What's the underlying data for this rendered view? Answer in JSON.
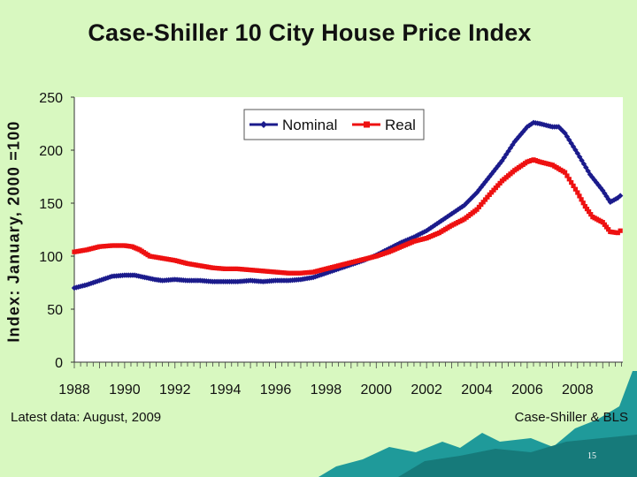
{
  "slide": {
    "title": "Case-Shiller 10 City House Price Index",
    "y_axis_title": "Index: January, 2000 =100",
    "footnote_left": "Latest data: August, 2009",
    "footnote_right": "Case-Shiller & BLS",
    "page_number": "15"
  },
  "colors": {
    "background": "#d8f8c0",
    "plot_area": "#ffffff",
    "nominal": "#1b1b8c",
    "real": "#ee1111",
    "decor": "#1f9a9a"
  },
  "chart_data": {
    "type": "line",
    "title": "Case-Shiller 10 City House Price Index",
    "xlabel": "",
    "ylabel": "Index: January, 2000 =100",
    "xlim": [
      1988,
      2009.8
    ],
    "ylim": [
      0,
      250
    ],
    "y_ticks": [
      0,
      50,
      100,
      150,
      200,
      250
    ],
    "x_ticks": [
      1988,
      1990,
      1992,
      1994,
      1996,
      1998,
      2000,
      2002,
      2004,
      2006,
      2008
    ],
    "x_tick_labels": [
      "1988",
      "1990",
      "1992",
      "1994",
      "1996",
      "1998",
      "2000",
      "2002",
      "2004",
      "2006",
      "2008"
    ],
    "grid": false,
    "legend": {
      "position": "top-right",
      "entries": [
        "Nominal",
        "Real"
      ]
    },
    "series": [
      {
        "name": "Nominal",
        "marker": "diamond",
        "points": [
          [
            1988.0,
            70
          ],
          [
            1988.5,
            73
          ],
          [
            1989.0,
            77
          ],
          [
            1989.5,
            81
          ],
          [
            1990.0,
            82
          ],
          [
            1990.4,
            82
          ],
          [
            1990.8,
            80
          ],
          [
            1991.2,
            78
          ],
          [
            1991.5,
            77
          ],
          [
            1992.0,
            78
          ],
          [
            1992.5,
            77
          ],
          [
            1993.0,
            77
          ],
          [
            1993.5,
            76
          ],
          [
            1994.0,
            76
          ],
          [
            1994.5,
            76
          ],
          [
            1995.0,
            77
          ],
          [
            1995.5,
            76
          ],
          [
            1996.0,
            77
          ],
          [
            1996.5,
            77
          ],
          [
            1997.0,
            78
          ],
          [
            1997.5,
            80
          ],
          [
            1998.0,
            84
          ],
          [
            1998.5,
            88
          ],
          [
            1999.0,
            92
          ],
          [
            1999.5,
            96
          ],
          [
            2000.0,
            101
          ],
          [
            2000.5,
            107
          ],
          [
            2001.0,
            113
          ],
          [
            2001.5,
            118
          ],
          [
            2002.0,
            124
          ],
          [
            2002.5,
            132
          ],
          [
            2003.0,
            140
          ],
          [
            2003.5,
            148
          ],
          [
            2004.0,
            160
          ],
          [
            2004.5,
            175
          ],
          [
            2005.0,
            190
          ],
          [
            2005.5,
            208
          ],
          [
            2006.0,
            222
          ],
          [
            2006.25,
            226
          ],
          [
            2006.5,
            225
          ],
          [
            2007.0,
            222
          ],
          [
            2007.25,
            222
          ],
          [
            2007.5,
            216
          ],
          [
            2008.0,
            197
          ],
          [
            2008.5,
            177
          ],
          [
            2009.0,
            162
          ],
          [
            2009.3,
            151
          ],
          [
            2009.6,
            155
          ],
          [
            2009.7,
            157
          ]
        ]
      },
      {
        "name": "Real",
        "marker": "square",
        "points": [
          [
            1988.0,
            104
          ],
          [
            1988.5,
            106
          ],
          [
            1989.0,
            109
          ],
          [
            1989.5,
            110
          ],
          [
            1990.0,
            110
          ],
          [
            1990.3,
            109
          ],
          [
            1990.6,
            106
          ],
          [
            1991.0,
            100
          ],
          [
            1991.5,
            98
          ],
          [
            1992.0,
            96
          ],
          [
            1992.5,
            93
          ],
          [
            1993.0,
            91
          ],
          [
            1993.5,
            89
          ],
          [
            1994.0,
            88
          ],
          [
            1994.5,
            88
          ],
          [
            1995.0,
            87
          ],
          [
            1995.5,
            86
          ],
          [
            1996.0,
            85
          ],
          [
            1996.5,
            84
          ],
          [
            1997.0,
            84
          ],
          [
            1997.5,
            85
          ],
          [
            1998.0,
            88
          ],
          [
            1998.5,
            91
          ],
          [
            1999.0,
            94
          ],
          [
            1999.5,
            97
          ],
          [
            2000.0,
            100
          ],
          [
            2000.5,
            104
          ],
          [
            2001.0,
            109
          ],
          [
            2001.5,
            114
          ],
          [
            2002.0,
            117
          ],
          [
            2002.5,
            122
          ],
          [
            2003.0,
            129
          ],
          [
            2003.5,
            135
          ],
          [
            2004.0,
            144
          ],
          [
            2004.5,
            158
          ],
          [
            2005.0,
            171
          ],
          [
            2005.5,
            181
          ],
          [
            2006.0,
            189
          ],
          [
            2006.25,
            191
          ],
          [
            2006.5,
            189
          ],
          [
            2007.0,
            186
          ],
          [
            2007.5,
            179
          ],
          [
            2008.0,
            160
          ],
          [
            2008.3,
            147
          ],
          [
            2008.6,
            137
          ],
          [
            2009.0,
            132
          ],
          [
            2009.3,
            123
          ],
          [
            2009.6,
            122
          ],
          [
            2009.7,
            124
          ]
        ]
      }
    ]
  }
}
